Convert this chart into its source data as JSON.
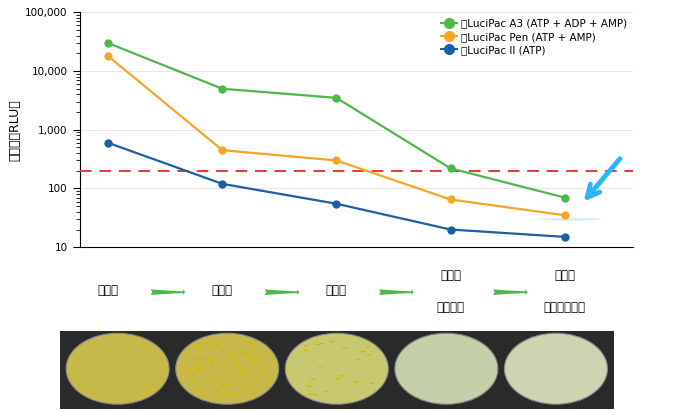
{
  "x_positions": [
    0,
    1,
    2,
    3,
    4
  ],
  "lucipac_a3": [
    30000,
    5000,
    3500,
    220,
    70
  ],
  "lucipac_pen": [
    18000,
    450,
    300,
    65,
    35
  ],
  "lucipac_ii": [
    600,
    120,
    55,
    20,
    15
  ],
  "color_a3": "#4db848",
  "color_pen": "#f5a623",
  "color_ii": "#1a5fa8",
  "threshold": 200,
  "threshold_color": "#e53935",
  "ylabel": "発光量（RLU）",
  "ylim_min": 10,
  "ylim_max": 100000,
  "legend_a3": "：LuciPac A3 (ATP + ADP + AMP)",
  "legend_pen": "：LuciPac Pen (ATP + AMP)",
  "legend_ii": "：LuciPac II (ATP)",
  "arrow_color": "#29b6f6",
  "ellipse_color": "#90caf9",
  "step_labels": [
    "洗浄前",
    "水洗浄",
    "湯洗浄",
    "洗剤で\n軽く洗浄",
    "洗剤で\nしっかり洗浄"
  ],
  "arrow_green": "#4db848",
  "dish_face_colors": [
    "#c8b84a",
    "#c8b84a",
    "#c8c870",
    "#c5cfa8",
    "#cdd4b0"
  ],
  "dish_edge_color": "#2a2a2a",
  "dish_colony_density": [
    0,
    2,
    1,
    0,
    0
  ]
}
